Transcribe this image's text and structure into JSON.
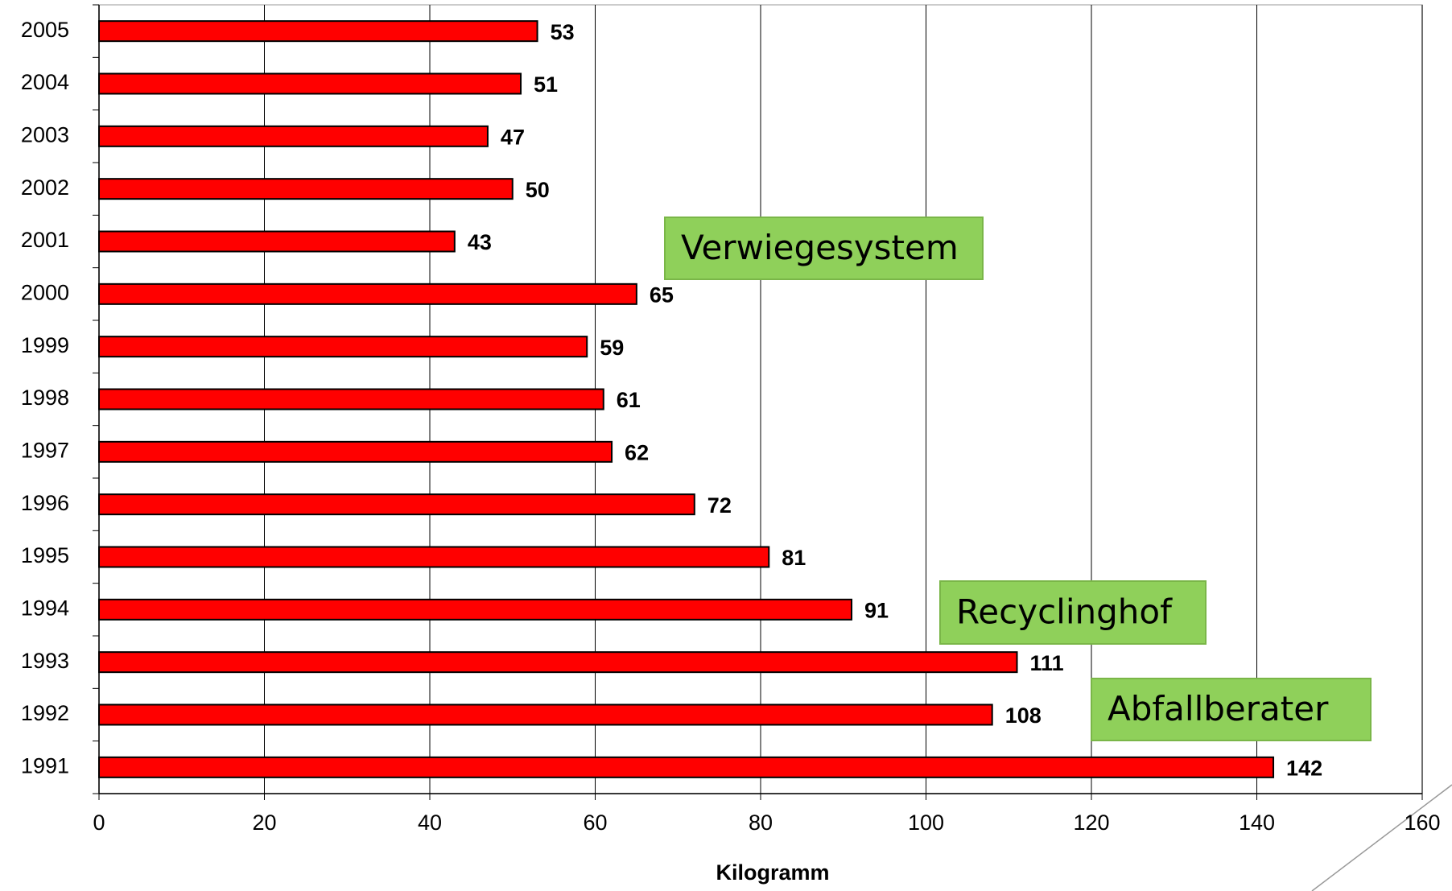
{
  "chart_data": {
    "type": "bar",
    "orientation": "horizontal",
    "categories": [
      "1991",
      "1992",
      "1993",
      "1994",
      "1995",
      "1996",
      "1997",
      "1998",
      "1999",
      "2000",
      "2001",
      "2002",
      "2003",
      "2004",
      "2005"
    ],
    "values": [
      142,
      108,
      111,
      91,
      81,
      72,
      62,
      61,
      59,
      65,
      43,
      50,
      47,
      51,
      53
    ],
    "color": "#ff0000",
    "xlim": [
      0,
      160
    ],
    "xticks": [
      0,
      20,
      40,
      60,
      80,
      100,
      120,
      140,
      160
    ],
    "xlabel": "Kilogramm",
    "grid": true,
    "annotations": [
      "Verwiegesystem",
      "Recyclinghof",
      "Abfallberater"
    ]
  }
}
